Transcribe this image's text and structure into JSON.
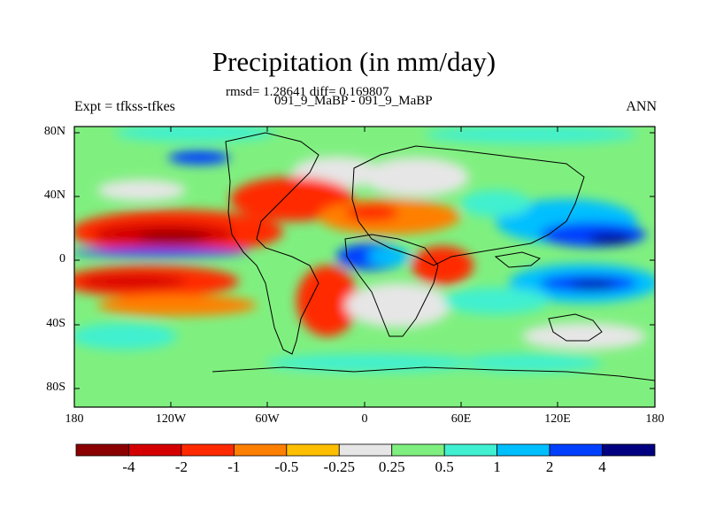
{
  "title": "Precipitation (in mm/day)",
  "stats": "rmsd= 1.28641 diff= 0.169807",
  "comparison": "091_9_MaBP - 091_9_MaBP",
  "experiment": "Expt = tfkss-tfkes",
  "season": "ANN",
  "map": {
    "lat_ticks": [
      "80N",
      "40N",
      "0",
      "40S",
      "80S"
    ],
    "lon_ticks": [
      "180",
      "120W",
      "60W",
      "0",
      "60E",
      "120E",
      "180"
    ]
  },
  "colorbar": {
    "colors": [
      "#8b0000",
      "#d40000",
      "#ff2a00",
      "#ff7f00",
      "#ffbf00",
      "#e6e6e6",
      "#7ff07f",
      "#40f0d0",
      "#00bfff",
      "#0040ff",
      "#000080"
    ],
    "labels": [
      "-4",
      "-2",
      "-1",
      "-0.5",
      "-0.25",
      "0.25",
      "0.5",
      "1",
      "2",
      "4"
    ]
  },
  "chart_data": {
    "type": "heatmap",
    "title": "Precipitation (in mm/day)",
    "xlabel": "",
    "ylabel": "",
    "x_range": [
      -180,
      180
    ],
    "y_range": [
      -90,
      90
    ],
    "levels": [
      -4,
      -2,
      -1,
      -0.5,
      -0.25,
      0.25,
      0.5,
      1,
      2,
      4
    ]
  }
}
